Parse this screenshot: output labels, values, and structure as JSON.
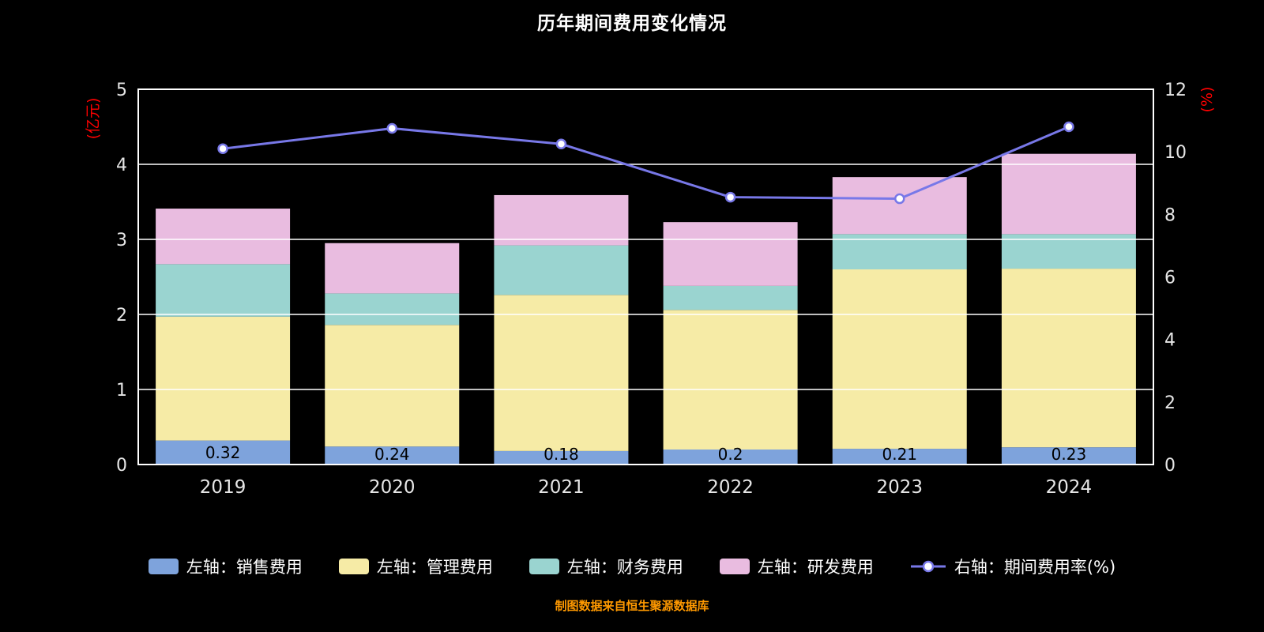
{
  "title": "历年期间费用变化情况",
  "footer": "制图数据来自恒生聚源数据库",
  "colors": {
    "background": "#000000",
    "grid": "#FFFFFF",
    "axis_text": "#E6E6E6",
    "unit_label": "#FF0000",
    "bar_value_label": "#000000",
    "footer_text": "#FF9900"
  },
  "chart_data": {
    "type": "bar",
    "title": "历年期间费用变化情况",
    "categories": [
      "2019",
      "2020",
      "2021",
      "2022",
      "2023",
      "2024"
    ],
    "series": [
      {
        "name": "左轴：销售费用",
        "type": "bar",
        "color": "#7EA3DC",
        "values": [
          0.32,
          0.24,
          0.18,
          0.2,
          0.21,
          0.23
        ]
      },
      {
        "name": "左轴：管理费用",
        "type": "bar",
        "color": "#F6EBA6",
        "values": [
          1.65,
          1.62,
          2.08,
          1.86,
          2.39,
          2.38
        ]
      },
      {
        "name": "左轴：财务费用",
        "type": "bar",
        "color": "#9AD4D0",
        "values": [
          0.7,
          0.42,
          0.66,
          0.32,
          0.47,
          0.46
        ]
      },
      {
        "name": "左轴：研发费用",
        "type": "bar",
        "color": "#E9BCE0",
        "values": [
          0.74,
          0.67,
          0.67,
          0.85,
          0.76,
          1.07
        ]
      },
      {
        "name": "右轴：期间费用率(%)",
        "type": "line",
        "color": "#7878E8",
        "values": [
          10.1,
          10.75,
          10.25,
          8.55,
          8.5,
          10.8
        ]
      }
    ],
    "bar_labels": [
      "0.32",
      "0.24",
      "0.18",
      "0.2",
      "0.21",
      "0.23"
    ],
    "left_axis": {
      "unit": "(亿元)",
      "min": 0,
      "max": 5,
      "ticks": [
        0,
        1,
        2,
        3,
        4,
        5
      ]
    },
    "right_axis": {
      "unit": "(%)",
      "min": 0,
      "max": 12,
      "ticks": [
        0,
        2,
        4,
        6,
        8,
        10,
        12
      ]
    },
    "grid": true,
    "legend_position": "bottom"
  }
}
